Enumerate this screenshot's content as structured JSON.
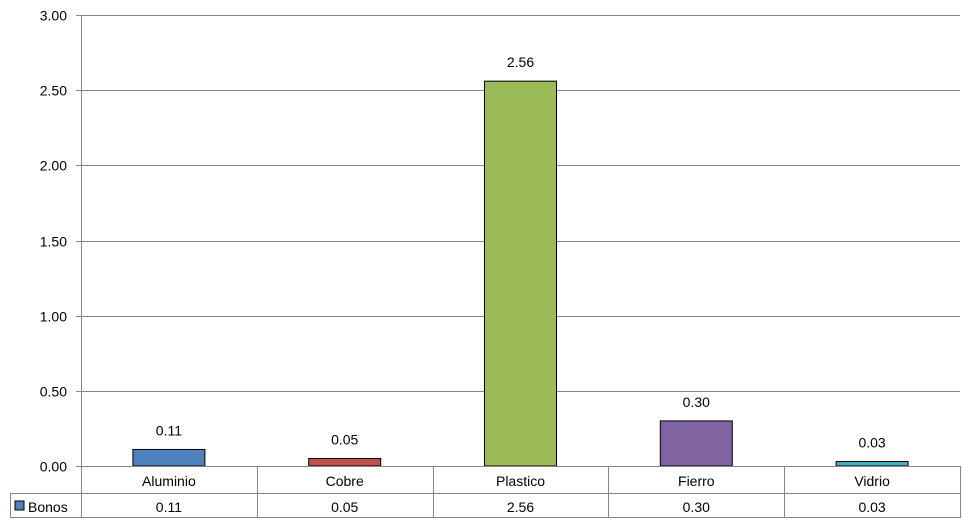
{
  "chart_data": {
    "type": "bar",
    "categories": [
      "Aluminio",
      "Cobre",
      "Plastico",
      "Fierro",
      "Vidrio"
    ],
    "series": [
      {
        "name": "Bonos",
        "values": [
          0.11,
          0.05,
          2.56,
          0.3,
          0.03
        ]
      }
    ],
    "value_labels": [
      "0.11",
      "0.05",
      "2.56",
      "0.30",
      "0.03"
    ],
    "bar_colors": [
      "#4f81bd",
      "#c0504d",
      "#9bbb59",
      "#8064a2",
      "#4bacc6"
    ],
    "legend_color": "#4f81bd",
    "ylim": [
      0,
      3
    ],
    "yticks": [
      "0.00",
      "0.50",
      "1.00",
      "1.50",
      "2.00",
      "2.50",
      "3.00"
    ],
    "grid": true,
    "legend": "data-table",
    "title": "",
    "xlabel": "",
    "ylabel": ""
  }
}
